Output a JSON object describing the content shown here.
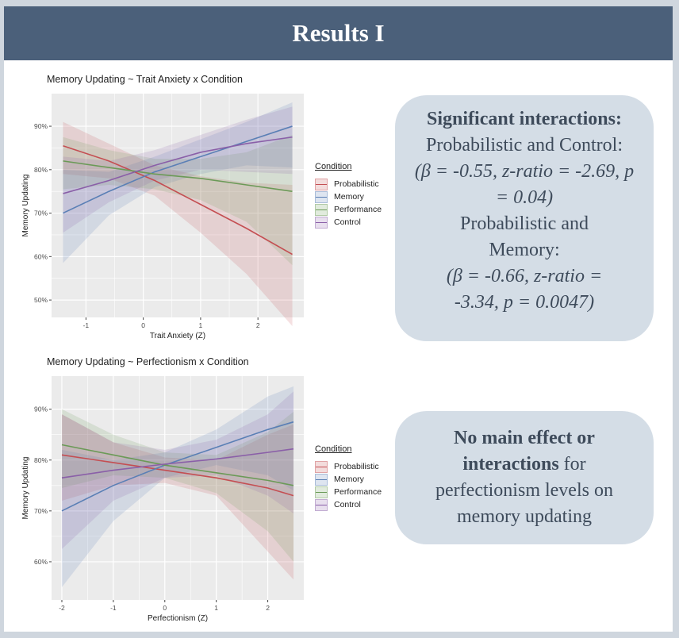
{
  "header": {
    "title": "Results I"
  },
  "boxes": {
    "box1": {
      "heading": "Significant interactions:",
      "line1": "Probabilistic and Control:",
      "stat1": "(β = -0.55, z-ratio = -2.69, p = 0.04)",
      "line2": "Probabilistic and Memory:",
      "stat2": "(β = -0.66, z-ratio = -3.34, p = 0.0047)"
    },
    "box2": {
      "bold": "No main effect or interactions",
      "rest": "for perfectionism levels on memory updating"
    }
  },
  "colors": {
    "Probabilistic": "#c44e52",
    "Memory": "#5a7fb5",
    "Performance": "#6b9a57",
    "Control": "#8a5fa8",
    "panel": "#ebebeb",
    "grid": "#ffffff"
  },
  "chart_data": [
    {
      "type": "line",
      "title": "Memory Updating ~ Trait Anxiety x Condition",
      "xlabel": "Trait Anxiety (Z)",
      "ylabel": "Memory Updating",
      "xlim": [
        -1.6,
        2.8
      ],
      "ylim": [
        0.46,
        0.975
      ],
      "xticks": [
        -1,
        0,
        1,
        2
      ],
      "xticklabels": [
        "-1",
        "0",
        "1",
        "2"
      ],
      "yticks": [
        0.5,
        0.6,
        0.7,
        0.8,
        0.9
      ],
      "yticklabels": [
        "50%",
        "60%",
        "70%",
        "80%",
        "90%"
      ],
      "legend": {
        "title": "Condition",
        "position": "right"
      },
      "series": [
        {
          "name": "Probabilistic",
          "x": [
            -1.4,
            -0.6,
            0.2,
            1.0,
            1.8,
            2.6
          ],
          "y": [
            0.855,
            0.82,
            0.775,
            0.72,
            0.665,
            0.605
          ],
          "lower": [
            0.79,
            0.78,
            0.74,
            0.655,
            0.56,
            0.44
          ],
          "upper": [
            0.91,
            0.86,
            0.81,
            0.785,
            0.77,
            0.765
          ]
        },
        {
          "name": "Memory",
          "x": [
            -1.4,
            -0.6,
            0.2,
            1.0,
            1.8,
            2.6
          ],
          "y": [
            0.7,
            0.75,
            0.795,
            0.83,
            0.865,
            0.9
          ],
          "lower": [
            0.585,
            0.695,
            0.76,
            0.79,
            0.81,
            0.805
          ],
          "upper": [
            0.8,
            0.795,
            0.83,
            0.87,
            0.91,
            0.955
          ]
        },
        {
          "name": "Performance",
          "x": [
            -1.4,
            -0.6,
            0.2,
            1.0,
            1.8,
            2.6
          ],
          "y": [
            0.82,
            0.805,
            0.79,
            0.78,
            0.765,
            0.75
          ],
          "lower": [
            0.755,
            0.765,
            0.755,
            0.73,
            0.68,
            0.58
          ],
          "upper": [
            0.875,
            0.845,
            0.825,
            0.825,
            0.84,
            0.88
          ]
        },
        {
          "name": "Control",
          "x": [
            -1.4,
            -0.6,
            0.2,
            1.0,
            1.8,
            2.6
          ],
          "y": [
            0.745,
            0.775,
            0.81,
            0.84,
            0.86,
            0.875
          ],
          "lower": [
            0.655,
            0.725,
            0.775,
            0.8,
            0.795,
            0.79
          ],
          "upper": [
            0.83,
            0.82,
            0.845,
            0.88,
            0.915,
            0.945
          ]
        }
      ]
    },
    {
      "type": "line",
      "title": "Memory Updating ~ Perfectionism x Condition",
      "xlabel": "Perfectionism (Z)",
      "ylabel": "Memory Updating",
      "xlim": [
        -2.2,
        2.7
      ],
      "ylim": [
        0.525,
        0.965
      ],
      "xticks": [
        -2,
        -1,
        0,
        1,
        2
      ],
      "xticklabels": [
        "-2",
        "-1",
        "0",
        "1",
        "2"
      ],
      "yticks": [
        0.6,
        0.7,
        0.8,
        0.9
      ],
      "yticklabels": [
        "60%",
        "70%",
        "80%",
        "90%"
      ],
      "legend": {
        "title": "Condition",
        "position": "right"
      },
      "series": [
        {
          "name": "Probabilistic",
          "x": [
            -2.0,
            -1.0,
            0.0,
            1.0,
            2.0,
            2.5
          ],
          "y": [
            0.81,
            0.795,
            0.78,
            0.765,
            0.745,
            0.73
          ],
          "lower": [
            0.72,
            0.75,
            0.755,
            0.73,
            0.62,
            0.565
          ],
          "upper": [
            0.89,
            0.835,
            0.805,
            0.8,
            0.85,
            0.87
          ]
        },
        {
          "name": "Memory",
          "x": [
            -2.0,
            -1.0,
            0.0,
            1.0,
            2.0,
            2.5
          ],
          "y": [
            0.7,
            0.75,
            0.79,
            0.825,
            0.86,
            0.875
          ],
          "lower": [
            0.55,
            0.68,
            0.765,
            0.79,
            0.77,
            0.74
          ],
          "upper": [
            0.82,
            0.8,
            0.815,
            0.86,
            0.925,
            0.945
          ]
        },
        {
          "name": "Performance",
          "x": [
            -2.0,
            -1.0,
            0.0,
            1.0,
            2.0,
            2.5
          ],
          "y": [
            0.83,
            0.81,
            0.79,
            0.775,
            0.76,
            0.75
          ],
          "lower": [
            0.745,
            0.77,
            0.765,
            0.735,
            0.66,
            0.6
          ],
          "upper": [
            0.9,
            0.85,
            0.815,
            0.81,
            0.855,
            0.895
          ]
        },
        {
          "name": "Control",
          "x": [
            -2.0,
            -1.0,
            0.0,
            1.0,
            2.0,
            2.5
          ],
          "y": [
            0.765,
            0.78,
            0.792,
            0.802,
            0.815,
            0.822
          ],
          "lower": [
            0.625,
            0.72,
            0.765,
            0.77,
            0.73,
            0.695
          ],
          "upper": [
            0.89,
            0.835,
            0.82,
            0.84,
            0.89,
            0.935
          ]
        }
      ]
    }
  ]
}
